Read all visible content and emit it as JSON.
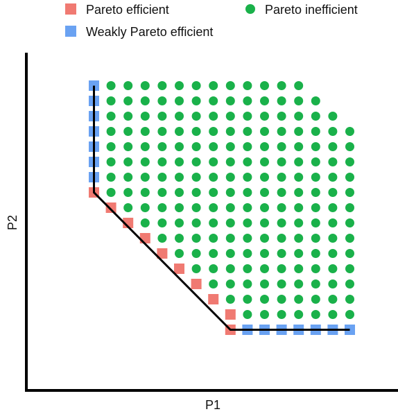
{
  "chart_data": {
    "type": "scatter",
    "xlabel": "P1",
    "ylabel": "P2",
    "xlim": [
      0,
      19
    ],
    "ylim": [
      0,
      19
    ],
    "grid": false,
    "legend_placement": "top",
    "colors": {
      "pareto_efficient": "#f07a72",
      "weakly_pareto_efficient": "#6aa2f2",
      "pareto_inefficient": "#1ab14a",
      "frontier_line": "#000000"
    },
    "legend": [
      {
        "label": "Pareto efficient",
        "marker": "square",
        "key": "pareto_efficient"
      },
      {
        "label": "Pareto inefficient",
        "marker": "circle",
        "key": "pareto_inefficient"
      },
      {
        "label": "Weakly Pareto efficient",
        "marker": "square",
        "key": "weakly_pareto_efficient"
      }
    ],
    "grid_points": {
      "x_range": [
        4,
        19
      ],
      "row_max_x": {
        "19": 16,
        "18": 17,
        "17": 18,
        "16": 19,
        "15": 19,
        "14": 19,
        "13": 19,
        "12": 19,
        "11": 19,
        "10": 19,
        "9": 19,
        "8": 19,
        "7": 19,
        "6": 19,
        "5": 19,
        "4": 19,
        "3": 19
      }
    },
    "pareto_efficient": [
      [
        4,
        12
      ],
      [
        5,
        11
      ],
      [
        6,
        10
      ],
      [
        7,
        9
      ],
      [
        8,
        8
      ],
      [
        9,
        7
      ],
      [
        10,
        6
      ],
      [
        11,
        5
      ],
      [
        12,
        4
      ],
      [
        12,
        3
      ]
    ],
    "weakly_pareto_efficient": [
      [
        4,
        19
      ],
      [
        4,
        18
      ],
      [
        4,
        17
      ],
      [
        4,
        16
      ],
      [
        4,
        15
      ],
      [
        4,
        14
      ],
      [
        4,
        13
      ],
      [
        13,
        3
      ],
      [
        14,
        3
      ],
      [
        15,
        3
      ],
      [
        16,
        3
      ],
      [
        17,
        3
      ],
      [
        18,
        3
      ],
      [
        19,
        3
      ]
    ],
    "frontier_line": [
      [
        4,
        19
      ],
      [
        4,
        12
      ],
      [
        12,
        3
      ],
      [
        19,
        3
      ]
    ]
  }
}
